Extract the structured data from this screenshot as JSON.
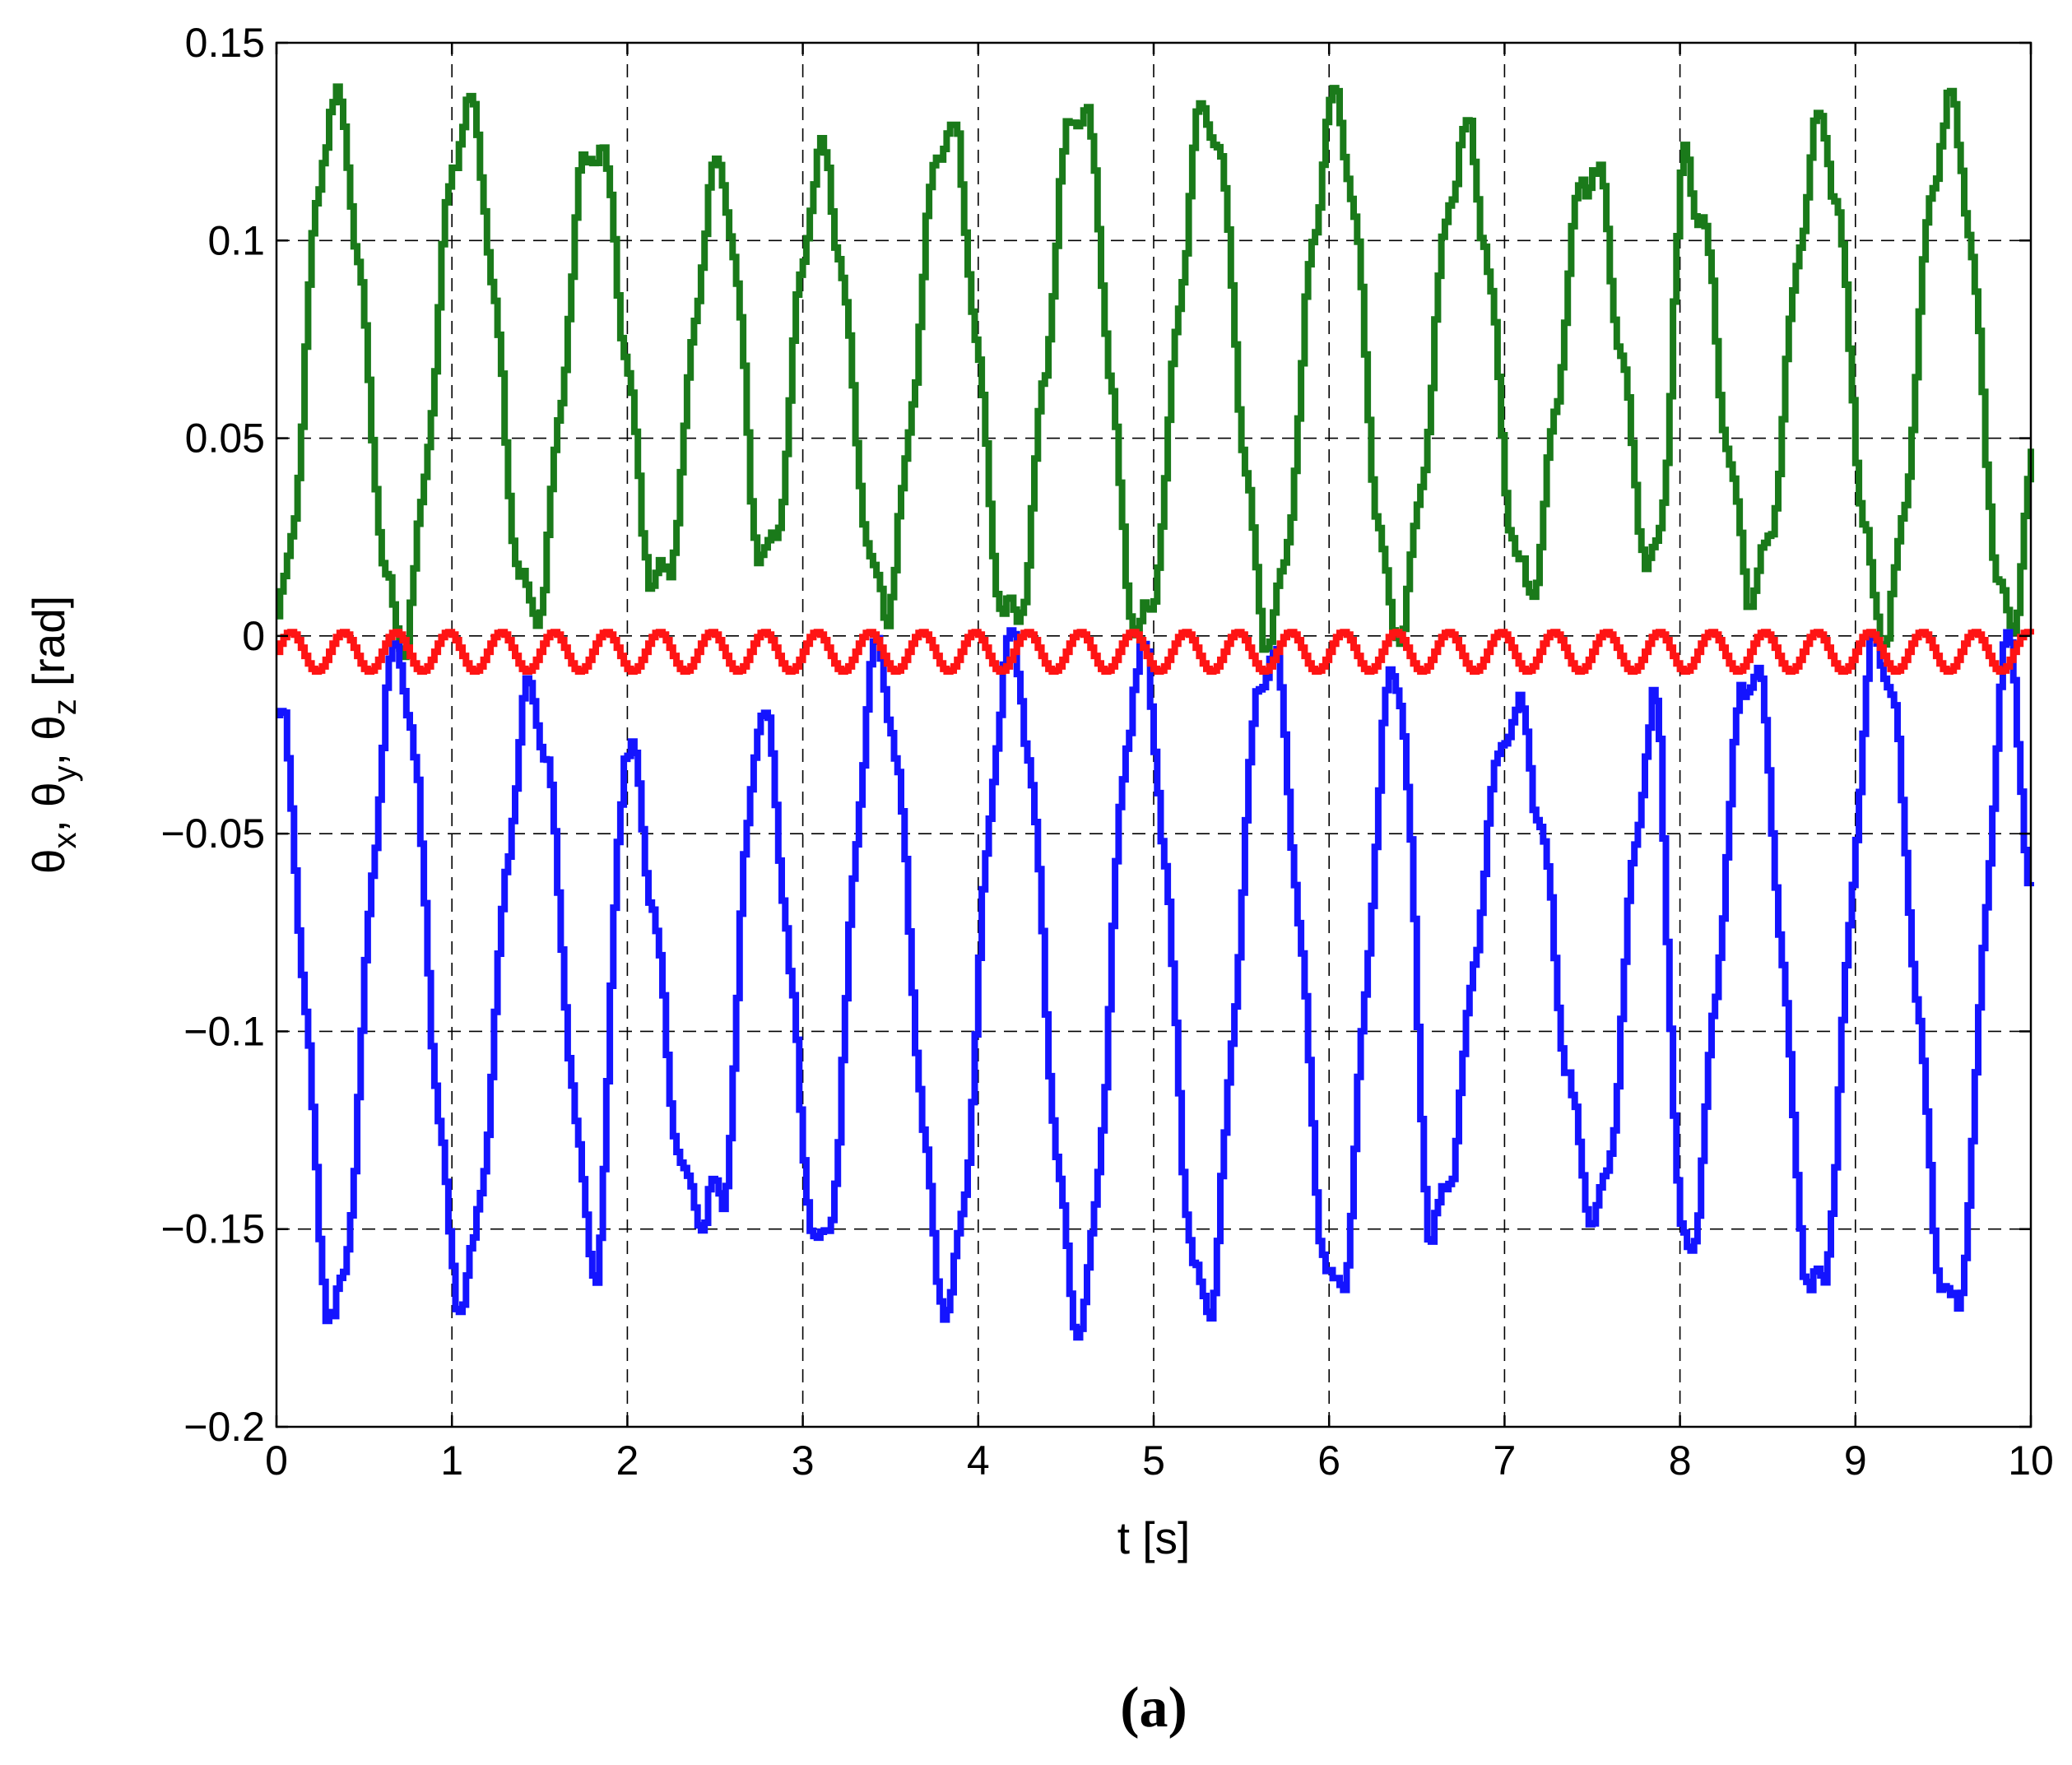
{
  "chart_data": {
    "type": "line",
    "title": "",
    "xlabel": "t [s]",
    "ylabel": "θx, θy, θz [rad]",
    "xlim": [
      0,
      10
    ],
    "ylim": [
      -0.2,
      0.15
    ],
    "grid": true,
    "legend": "none",
    "x_ticks": [
      "0",
      "1",
      "2",
      "3",
      "4",
      "5",
      "6",
      "7",
      "8",
      "9",
      "10"
    ],
    "y_ticks": [
      "0.15",
      "0.1",
      "0.05",
      "0",
      "−0.05",
      "−0.1",
      "−0.15",
      "−0.2"
    ],
    "series": [
      {
        "color": "#1a7a1a",
        "peaks": [
          [
            0.32,
            0.135
          ],
          [
            1.08,
            0.133
          ],
          [
            1.8,
            0.125
          ],
          [
            2.52,
            0.118
          ],
          [
            3.1,
            0.12
          ],
          [
            3.82,
            0.129
          ],
          [
            4.57,
            0.134
          ],
          [
            5.3,
            0.134
          ],
          [
            6.03,
            0.133
          ],
          [
            6.77,
            0.126
          ],
          [
            7.48,
            0.119
          ],
          [
            8.03,
            0.118
          ],
          [
            8.8,
            0.127
          ],
          [
            9.53,
            0.133
          ]
        ],
        "troughs": [
          [
            0.0,
            0.005
          ],
          [
            0.7,
            0.0
          ],
          [
            1.45,
            0.005
          ],
          [
            2.18,
            0.012
          ],
          [
            2.78,
            0.018
          ],
          [
            3.45,
            0.008
          ],
          [
            4.18,
            0.002
          ],
          [
            4.92,
            0.0
          ],
          [
            5.65,
            0.001
          ],
          [
            6.38,
            0.002
          ],
          [
            7.12,
            0.012
          ],
          [
            7.85,
            0.018
          ],
          [
            8.42,
            0.012
          ],
          [
            9.15,
            0.002
          ],
          [
            9.88,
            0.002
          ],
          [
            10.0,
            0.04
          ]
        ]
      },
      {
        "color": "#ff1414",
        "mean": -0.004,
        "amplitude": 0.005,
        "period": 0.3
      },
      {
        "color": "#1414ff",
        "peaks": [
          [
            0.0,
            -0.02
          ],
          [
            0.68,
            -0.005
          ],
          [
            1.45,
            -0.015
          ],
          [
            1.98,
            -0.03
          ],
          [
            2.75,
            -0.02
          ],
          [
            3.42,
            -0.005
          ],
          [
            4.18,
            -0.003
          ],
          [
            4.92,
            -0.005
          ],
          [
            5.65,
            -0.003
          ],
          [
            6.38,
            -0.008
          ],
          [
            7.05,
            -0.02
          ],
          [
            7.85,
            -0.02
          ],
          [
            8.4,
            -0.008
          ],
          [
            9.12,
            -0.002
          ],
          [
            9.88,
            -0.003
          ],
          [
            10.0,
            -0.07
          ]
        ],
        "troughs": [
          [
            0.32,
            -0.172
          ],
          [
            1.05,
            -0.167
          ],
          [
            1.82,
            -0.158
          ],
          [
            2.38,
            -0.145
          ],
          [
            2.52,
            -0.143
          ],
          [
            3.1,
            -0.156
          ],
          [
            3.82,
            -0.169
          ],
          [
            4.57,
            -0.172
          ],
          [
            5.28,
            -0.17
          ],
          [
            6.03,
            -0.167
          ],
          [
            6.58,
            -0.15
          ],
          [
            7.52,
            -0.145
          ],
          [
            8.02,
            -0.158
          ],
          [
            8.77,
            -0.168
          ],
          [
            9.55,
            -0.171
          ]
        ]
      }
    ]
  },
  "caption": "(a)"
}
